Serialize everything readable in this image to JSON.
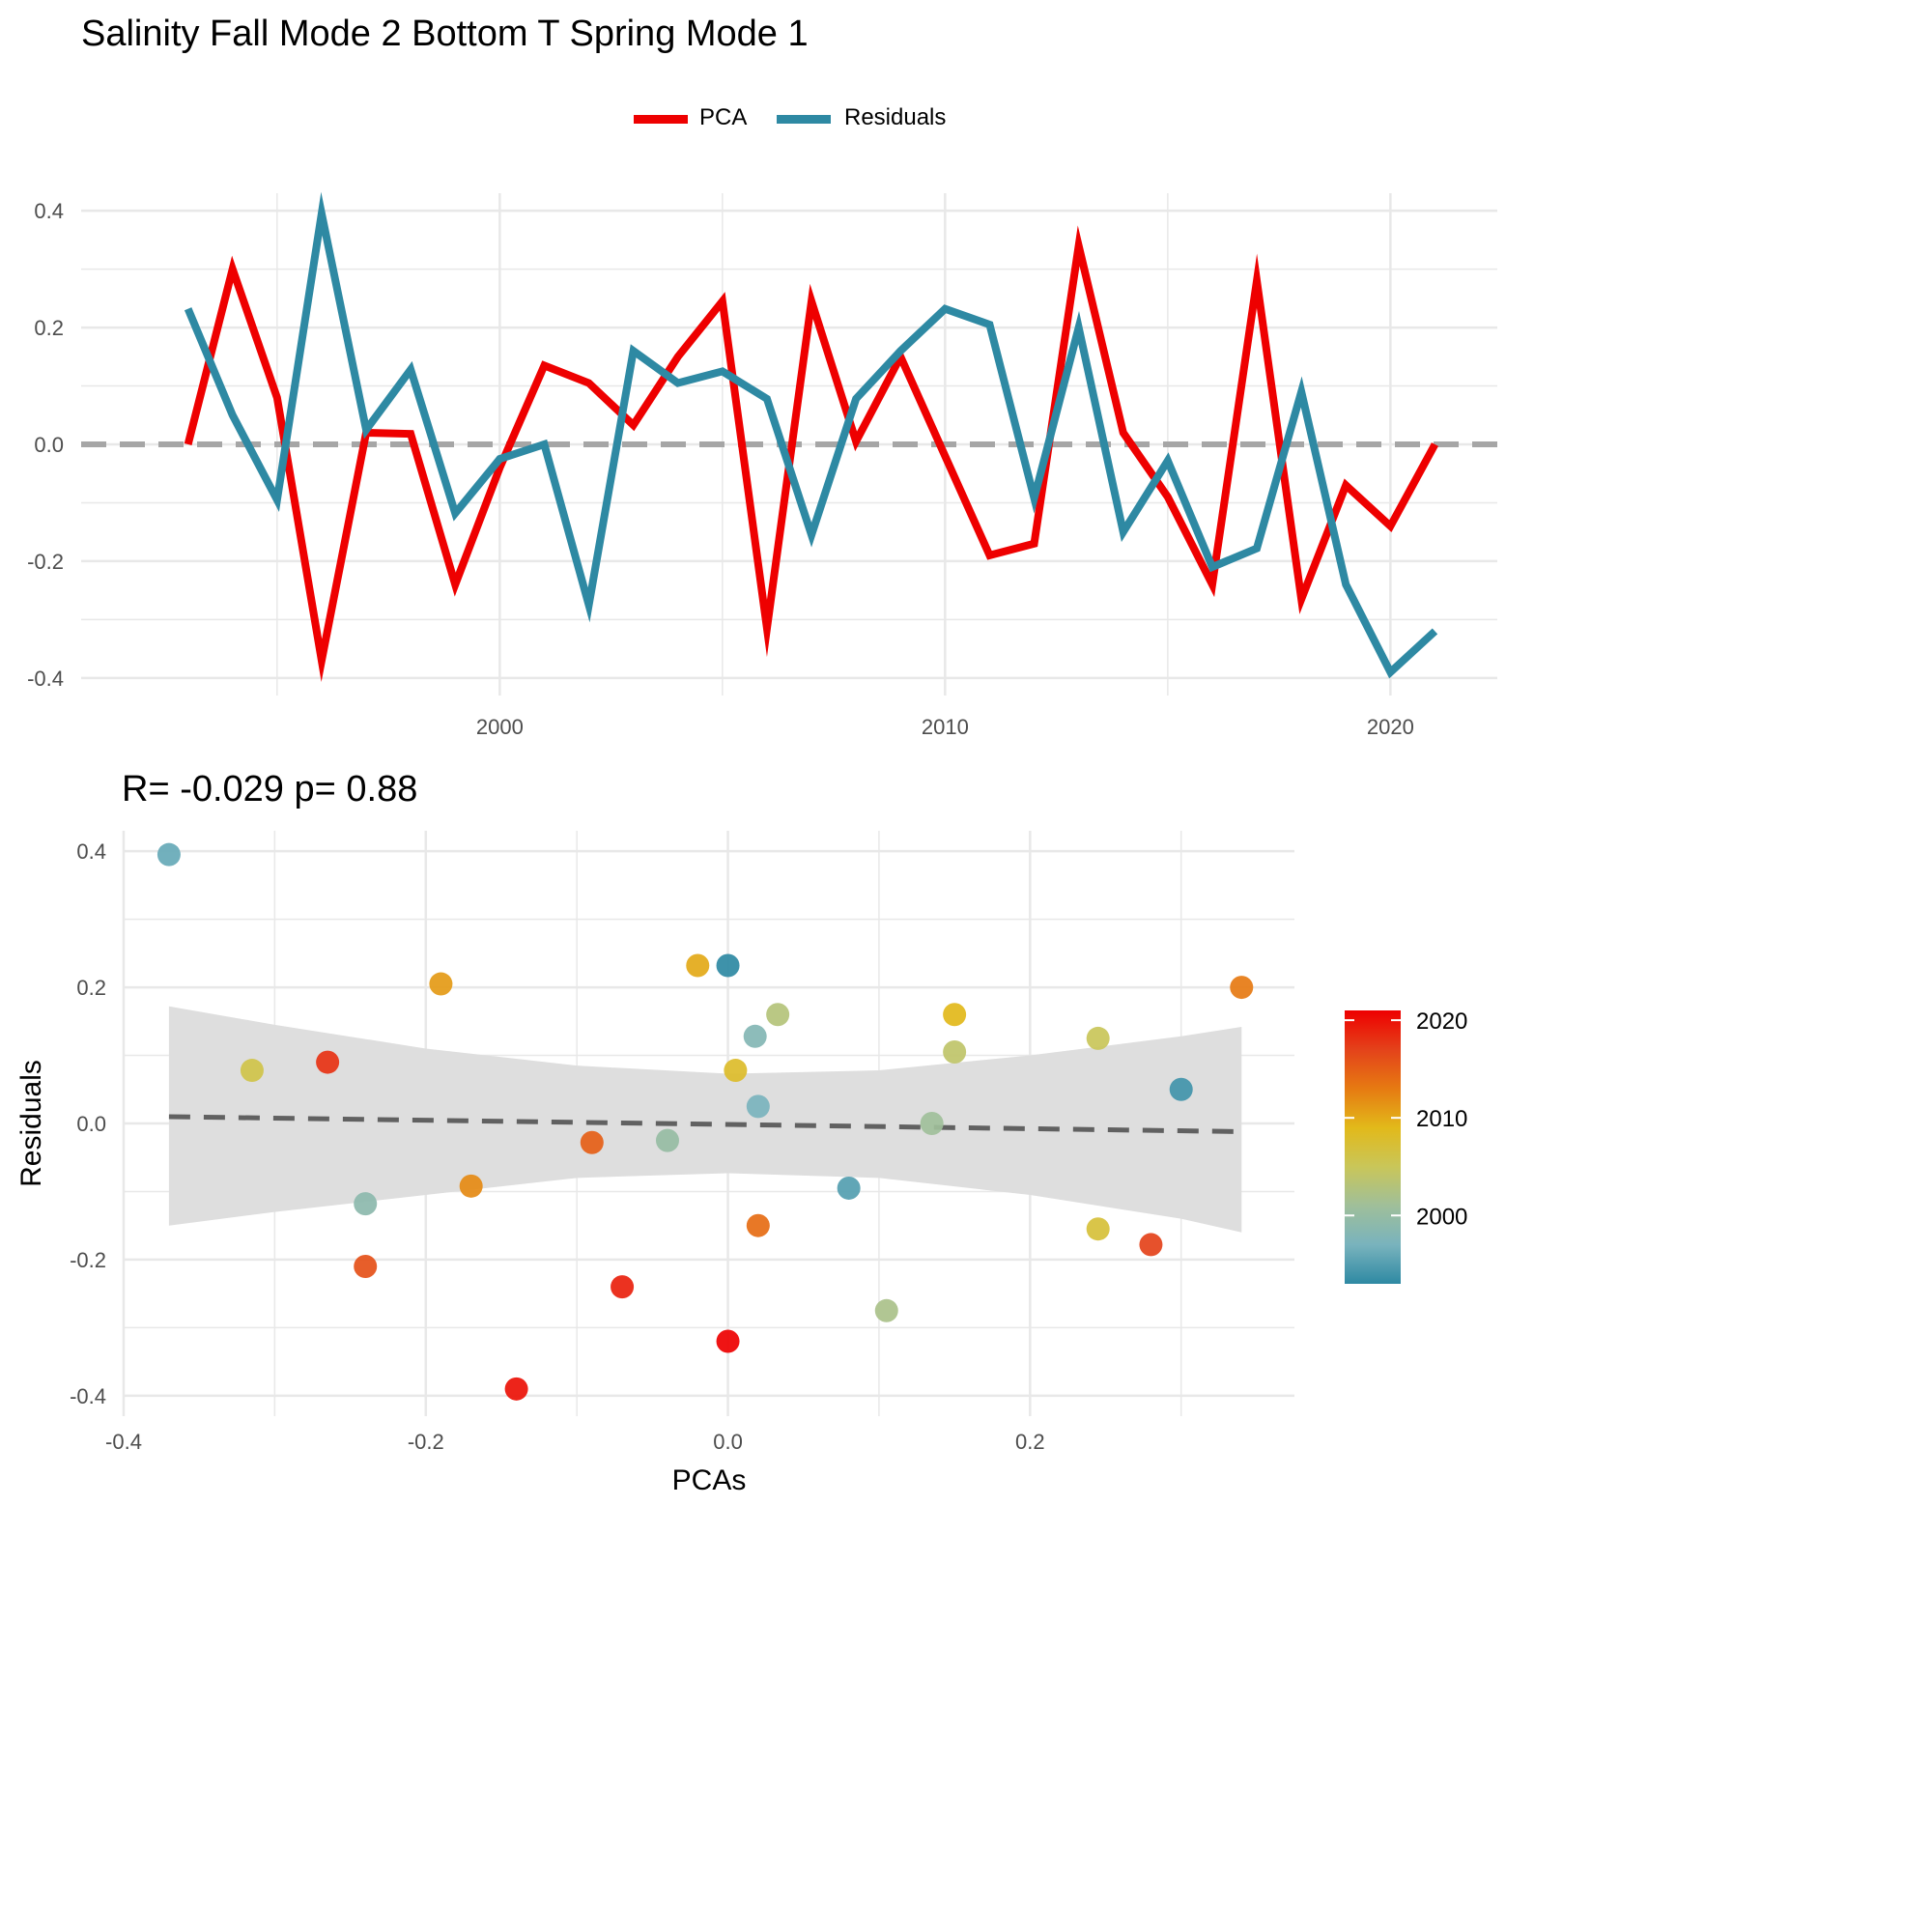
{
  "title": "Salinity Fall Mode 2 Bottom T Spring Mode 1",
  "legend": [
    {
      "label": "PCA",
      "color": "#ee0000"
    },
    {
      "label": "Residuals",
      "color": "#2e89a3"
    }
  ],
  "stats_text": "R= -0.029  p= 0.88",
  "colors": {
    "pca": "#ee0000",
    "residuals": "#2e89a3",
    "zero_line": "#a6a6a6",
    "trend_line": "#616161",
    "ribbon": "#dedede",
    "grid": "#e8e8e8"
  },
  "colorbar": {
    "ticks": [
      "2020",
      "2010",
      "2000"
    ],
    "range": [
      1993,
      2021
    ],
    "palette": [
      "#2e89a3",
      "#79b3bd",
      "#9fbf9a",
      "#c9c659",
      "#e2b91a",
      "#e67a12",
      "#e4421a",
      "#ee0000"
    ]
  },
  "chart_data": [
    {
      "type": "line",
      "title": "",
      "xlabel": "",
      "ylabel": "",
      "xlim": [
        1990.6,
        2022.4
      ],
      "ylim": [
        -0.43,
        0.43
      ],
      "x_ticks": [
        2000,
        2010,
        2020
      ],
      "y_ticks": [
        0.4,
        0.2,
        0.0,
        -0.2,
        -0.4
      ],
      "y_tick_labels": [
        "0.4",
        "0.2",
        "0.0",
        "-0.2",
        "-0.4"
      ],
      "grid": true,
      "legend_position": "top-center",
      "x": [
        1993,
        1994,
        1995,
        1996,
        1997,
        1998,
        1999,
        2000,
        2001,
        2002,
        2003,
        2004,
        2005,
        2006,
        2007,
        2008,
        2009,
        2010,
        2011,
        2012,
        2013,
        2014,
        2015,
        2016,
        2017,
        2018,
        2019,
        2020,
        2021
      ],
      "series": [
        {
          "name": "PCA",
          "values": [
            0.0,
            0.3,
            0.08,
            -0.37,
            0.02,
            0.018,
            -0.24,
            -0.04,
            0.135,
            0.105,
            0.033,
            0.15,
            0.245,
            -0.315,
            0.245,
            0.005,
            0.15,
            -0.02,
            -0.19,
            -0.17,
            0.34,
            0.02,
            -0.09,
            -0.24,
            0.28,
            -0.265,
            -0.07,
            -0.14,
            0.0
          ]
        },
        {
          "name": "Residuals",
          "values": [
            0.232,
            0.05,
            -0.095,
            0.395,
            0.025,
            0.128,
            -0.118,
            -0.025,
            0.0,
            -0.275,
            0.16,
            0.105,
            0.125,
            0.078,
            -0.155,
            0.078,
            0.16,
            0.232,
            0.205,
            -0.092,
            0.2,
            -0.15,
            -0.028,
            -0.21,
            -0.178,
            0.09,
            -0.24,
            -0.39,
            -0.32
          ]
        }
      ],
      "reference_line": {
        "y": 0.0,
        "style": "dashed"
      }
    },
    {
      "type": "scatter",
      "title": "",
      "xlabel": "PCAs",
      "ylabel": "Residuals",
      "xlim": [
        -0.4,
        0.375
      ],
      "ylim": [
        -0.43,
        0.43
      ],
      "x_ticks": [
        -0.4,
        -0.2,
        0.0,
        0.2
      ],
      "x_tick_labels": [
        "-0.4",
        "-0.2",
        "0.0",
        "0.2"
      ],
      "y_ticks": [
        0.4,
        0.2,
        0.0,
        -0.2,
        -0.4
      ],
      "y_tick_labels": [
        "0.4",
        "0.2",
        "0.0",
        "-0.2",
        "-0.4"
      ],
      "grid": true,
      "color_by": "year",
      "points": [
        {
          "x": 0.0,
          "y": 0.232,
          "year": 1993
        },
        {
          "x": 0.3,
          "y": 0.05,
          "year": 1994
        },
        {
          "x": 0.08,
          "y": -0.095,
          "year": 1995
        },
        {
          "x": -0.37,
          "y": 0.395,
          "year": 1996
        },
        {
          "x": 0.02,
          "y": 0.025,
          "year": 1997
        },
        {
          "x": 0.018,
          "y": 0.128,
          "year": 1998
        },
        {
          "x": -0.24,
          "y": -0.118,
          "year": 1999
        },
        {
          "x": -0.04,
          "y": -0.025,
          "year": 2000
        },
        {
          "x": 0.135,
          "y": 0.0,
          "year": 2001
        },
        {
          "x": 0.105,
          "y": -0.275,
          "year": 2002
        },
        {
          "x": 0.033,
          "y": 0.16,
          "year": 2003
        },
        {
          "x": 0.15,
          "y": 0.105,
          "year": 2004
        },
        {
          "x": 0.245,
          "y": 0.125,
          "year": 2005
        },
        {
          "x": -0.315,
          "y": 0.078,
          "year": 2006
        },
        {
          "x": 0.245,
          "y": -0.155,
          "year": 2007
        },
        {
          "x": 0.005,
          "y": 0.078,
          "year": 2008
        },
        {
          "x": 0.15,
          "y": 0.16,
          "year": 2009
        },
        {
          "x": -0.02,
          "y": 0.232,
          "year": 2010
        },
        {
          "x": -0.19,
          "y": 0.205,
          "year": 2011
        },
        {
          "x": -0.17,
          "y": -0.092,
          "year": 2012
        },
        {
          "x": 0.34,
          "y": 0.2,
          "year": 2013
        },
        {
          "x": 0.02,
          "y": -0.15,
          "year": 2014
        },
        {
          "x": -0.09,
          "y": -0.028,
          "year": 2015
        },
        {
          "x": -0.24,
          "y": -0.21,
          "year": 2016
        },
        {
          "x": 0.28,
          "y": -0.178,
          "year": 2017
        },
        {
          "x": -0.265,
          "y": 0.09,
          "year": 2018
        },
        {
          "x": -0.07,
          "y": -0.24,
          "year": 2019
        },
        {
          "x": -0.14,
          "y": -0.39,
          "year": 2020
        },
        {
          "x": 0.0,
          "y": -0.32,
          "year": 2021
        }
      ],
      "fit": {
        "x": [
          -0.37,
          0.34
        ],
        "y": [
          0.01,
          -0.012
        ],
        "style": "dashed"
      },
      "confidence_band": {
        "x": [
          -0.37,
          -0.3,
          -0.2,
          -0.1,
          0.0,
          0.1,
          0.2,
          0.3,
          0.34
        ],
        "upper": [
          0.172,
          0.145,
          0.11,
          0.085,
          0.073,
          0.078,
          0.1,
          0.128,
          0.142
        ],
        "lower": [
          -0.15,
          -0.13,
          -0.105,
          -0.08,
          -0.073,
          -0.08,
          -0.105,
          -0.14,
          -0.16
        ]
      }
    }
  ]
}
